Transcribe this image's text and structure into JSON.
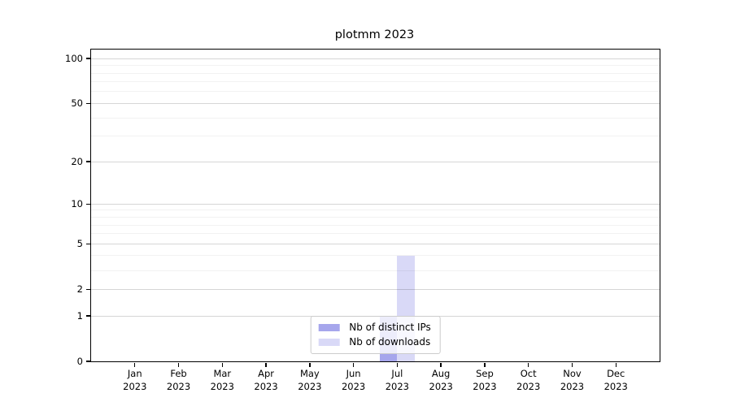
{
  "chart_data": {
    "type": "bar",
    "title": "plotmm 2023",
    "categories": [
      "Jan 2023",
      "Feb 2023",
      "Mar 2023",
      "Apr 2023",
      "May 2023",
      "Jun 2023",
      "Jul 2023",
      "Aug 2023",
      "Sep 2023",
      "Oct 2023",
      "Nov 2023",
      "Dec 2023"
    ],
    "series": [
      {
        "name": "Nb of distinct IPs",
        "color": "#a6a6ec",
        "values": [
          0,
          0,
          0,
          0,
          0,
          0,
          1,
          0,
          0,
          0,
          0,
          0
        ]
      },
      {
        "name": "Nb of downloads",
        "color": "#d9d9f7",
        "values": [
          0,
          0,
          0,
          0,
          0,
          0,
          4,
          0,
          0,
          0,
          0,
          0
        ]
      }
    ],
    "xlabel": "",
    "ylabel": "",
    "yscale": "log1p",
    "ylim": [
      0,
      115
    ],
    "yticks": [
      0,
      1,
      2,
      5,
      10,
      20,
      50,
      100
    ],
    "minor_yticks": [
      3,
      4,
      6,
      7,
      8,
      9,
      30,
      40,
      60,
      70,
      80,
      90
    ],
    "grid": "on",
    "legend_position": "lower center"
  }
}
